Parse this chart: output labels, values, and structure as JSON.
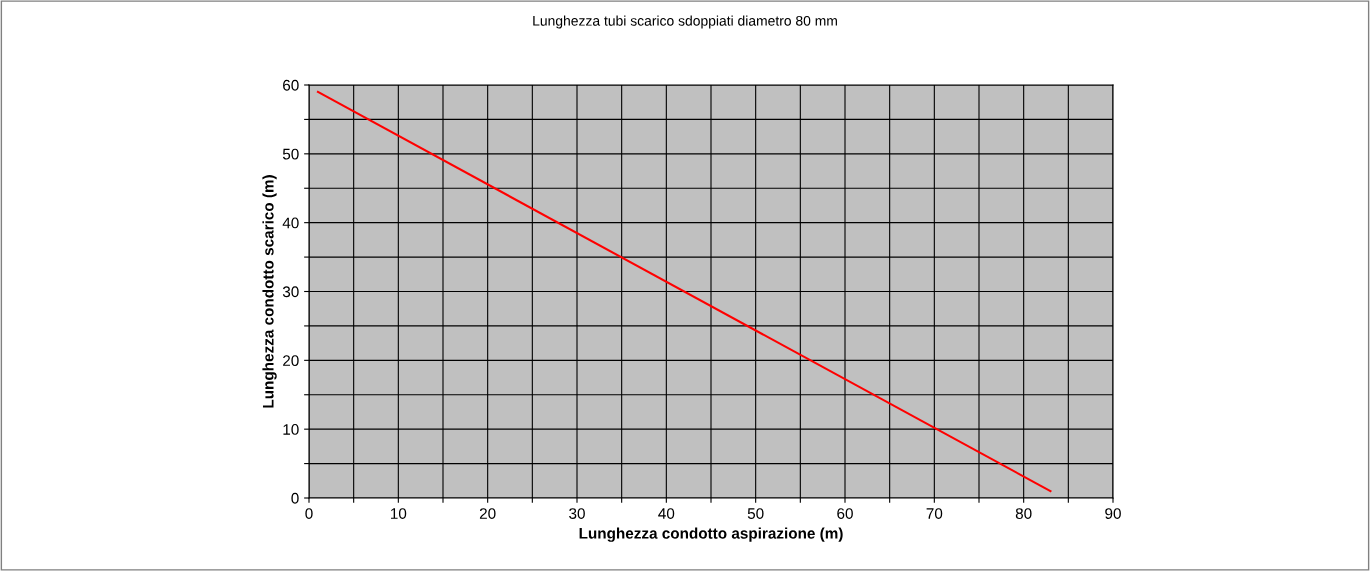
{
  "chart_data": {
    "type": "line",
    "title": "Lunghezza tubi scarico sdoppiati diametro 80 mm",
    "xlabel": "Lunghezza condotto aspirazione (m)",
    "ylabel": "Lunghezza condotto scarico (m)",
    "x": [
      1,
      83
    ],
    "series": [
      {
        "color": "#ff0000",
        "values": [
          59,
          1
        ]
      }
    ],
    "xlim": [
      0,
      90
    ],
    "ylim": [
      0,
      60
    ],
    "xticks": [
      0,
      {
        "value": 5,
        "label": null
      },
      10,
      {
        "value": 15,
        "label": null
      },
      20,
      {
        "value": 25,
        "label": null
      },
      30,
      {
        "value": 35,
        "label": null
      },
      40,
      {
        "value": 45,
        "label": null
      },
      50,
      {
        "value": 55,
        "label": null
      },
      60,
      {
        "value": 65,
        "label": null
      },
      70,
      {
        "value": 75,
        "label": null
      },
      80,
      {
        "value": 85,
        "label": null
      },
      90
    ],
    "yticks": [
      0,
      {
        "value": 5,
        "label": null
      },
      10,
      {
        "value": 15,
        "label": null
      },
      20,
      {
        "value": 25,
        "label": null
      },
      30,
      {
        "value": 35,
        "label": null
      },
      40,
      {
        "value": 45,
        "label": null
      },
      50,
      {
        "value": 55,
        "label": null
      },
      60
    ],
    "grid": true,
    "marker": "none",
    "line_style": "solid"
  }
}
